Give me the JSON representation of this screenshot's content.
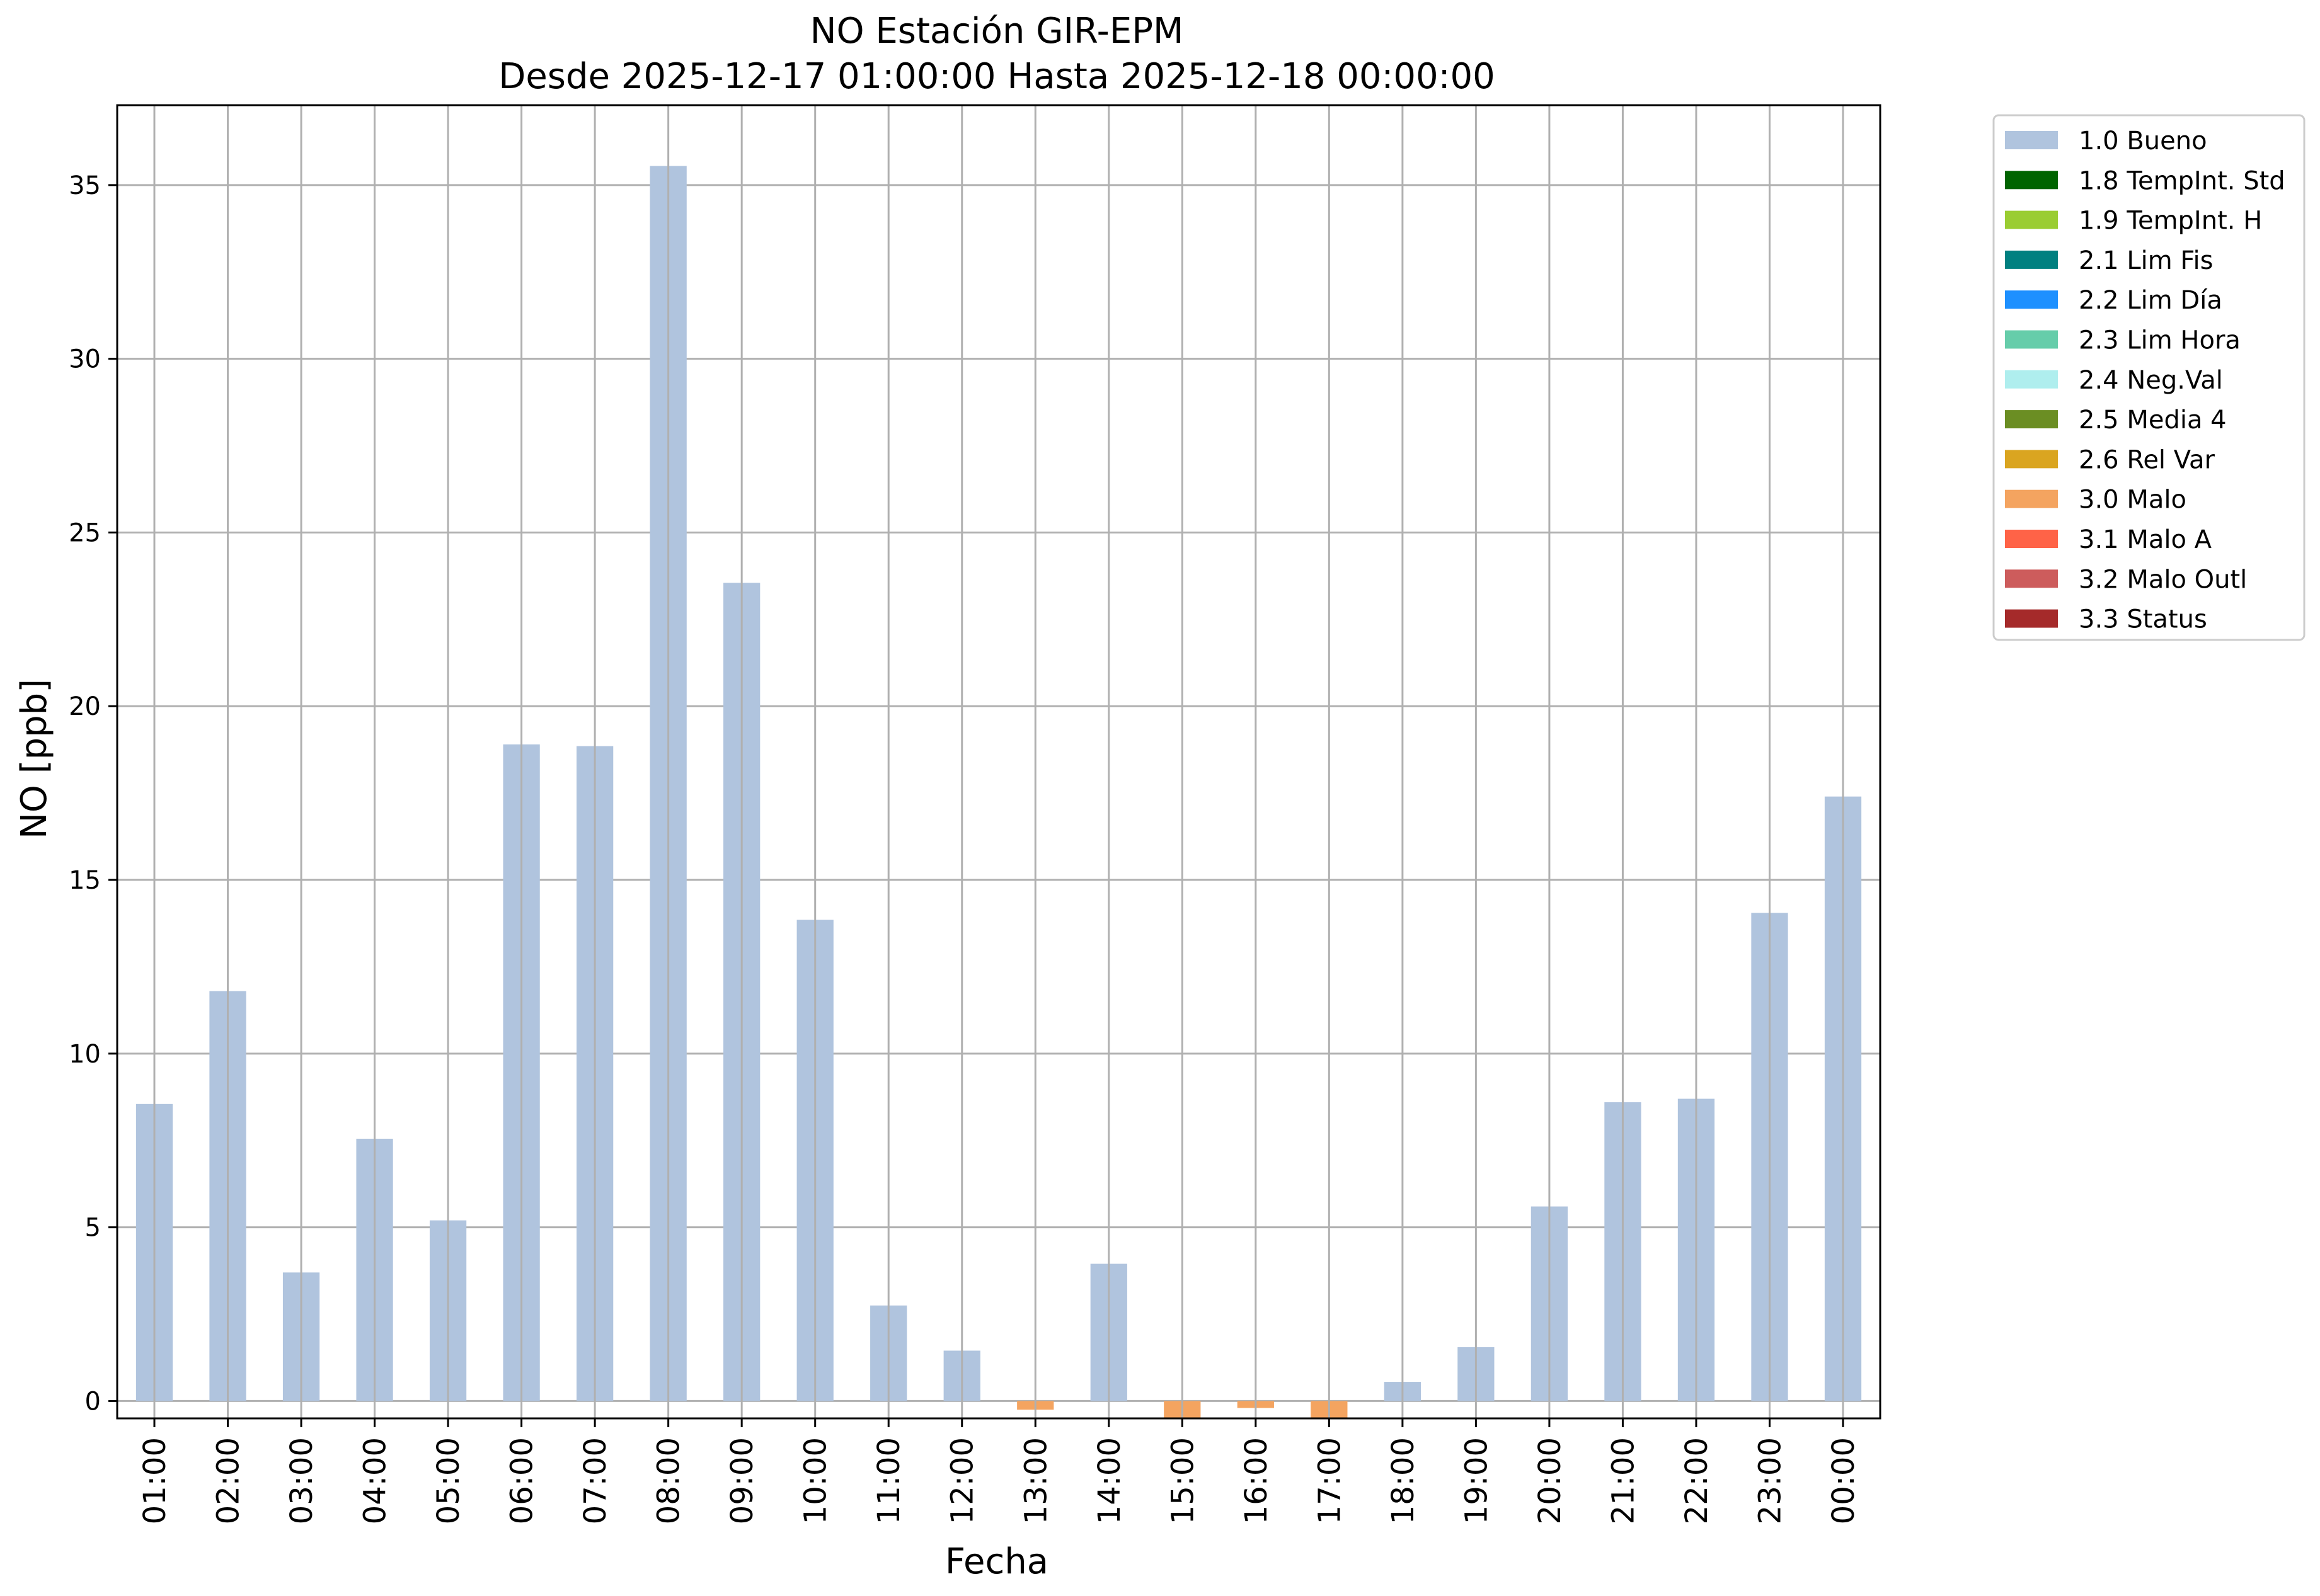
{
  "chart_data": {
    "type": "bar",
    "title": "NO Estación GIR-EPM",
    "subtitle": "Desde 2025-12-17 01:00:00 Hasta 2025-12-18 00:00:00",
    "xlabel": "Fecha",
    "ylabel": "NO [ppb]",
    "ylim": [
      -0.5,
      37.3
    ],
    "yticks": [
      0,
      5,
      10,
      15,
      20,
      25,
      30,
      35
    ],
    "grid": true,
    "legend_position": "outside-top-right",
    "categories": [
      "01:00",
      "02:00",
      "03:00",
      "04:00",
      "05:00",
      "06:00",
      "07:00",
      "08:00",
      "09:00",
      "10:00",
      "11:00",
      "12:00",
      "13:00",
      "14:00",
      "15:00",
      "16:00",
      "17:00",
      "18:00",
      "19:00",
      "20:00",
      "21:00",
      "22:00",
      "23:00",
      "00:00"
    ],
    "values": [
      8.55,
      11.8,
      3.7,
      7.55,
      5.2,
      18.9,
      18.85,
      35.55,
      23.55,
      13.85,
      2.75,
      1.45,
      -0.25,
      3.95,
      -0.5,
      -0.2,
      -0.5,
      0.55,
      1.55,
      5.6,
      8.6,
      8.7,
      14.05,
      17.4
    ],
    "flags": [
      "1.0 Bueno",
      "1.0 Bueno",
      "1.0 Bueno",
      "1.0 Bueno",
      "1.0 Bueno",
      "1.0 Bueno",
      "1.0 Bueno",
      "1.0 Bueno",
      "1.0 Bueno",
      "1.0 Bueno",
      "1.0 Bueno",
      "1.0 Bueno",
      "3.0 Malo",
      "1.0 Bueno",
      "3.0 Malo",
      "3.0 Malo",
      "3.0 Malo",
      "1.0 Bueno",
      "1.0 Bueno",
      "1.0 Bueno",
      "1.0 Bueno",
      "1.0 Bueno",
      "1.0 Bueno",
      "1.0 Bueno"
    ],
    "legend": [
      {
        "label": "1.0 Bueno",
        "color": "#b0c4de"
      },
      {
        "label": "1.8 TempInt. Std",
        "color": "#006400"
      },
      {
        "label": "1.9 TempInt. H",
        "color": "#9acd32"
      },
      {
        "label": "2.1 Lim Fis",
        "color": "#008080"
      },
      {
        "label": "2.2 Lim Día",
        "color": "#1e90ff"
      },
      {
        "label": "2.3 Lim Hora",
        "color": "#66cdaa"
      },
      {
        "label": "2.4 Neg.Val",
        "color": "#afeeee"
      },
      {
        "label": "2.5 Media 4",
        "color": "#6b8e23"
      },
      {
        "label": "2.6 Rel Var",
        "color": "#daa520"
      },
      {
        "label": "3.0 Malo",
        "color": "#f4a460"
      },
      {
        "label": "3.1 Malo A",
        "color": "#ff6347"
      },
      {
        "label": "3.2 Malo Outl",
        "color": "#cd5c5c"
      },
      {
        "label": "3.3 Status",
        "color": "#a52a2a"
      }
    ]
  }
}
